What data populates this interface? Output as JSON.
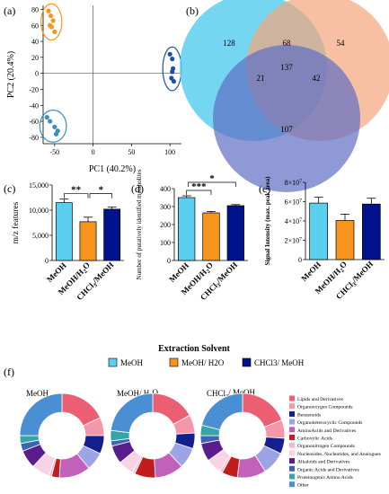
{
  "palette": {
    "meoh": "#5ccfee",
    "meoh_h2o": "#f7941d",
    "chcl3": "#00138c",
    "venn_a": "#5ccfee",
    "venn_b": "#f5a57c",
    "venn_c": "#5e6dc4"
  },
  "panel_labels": [
    "(a)",
    "(b)",
    "(c)",
    "(d)",
    "(e)",
    "(f)"
  ],
  "legend": {
    "title": "Extraction Solvent",
    "items": [
      "MeOH",
      "MeOH/ H2O",
      "CHCl3/ MeOH"
    ]
  },
  "chart_data": [
    {
      "panel": "a",
      "type": "scatter",
      "xlabel": "PC1 (40.2%)",
      "ylabel": "PC2 (20.4%)",
      "xlim": [
        -65,
        115
      ],
      "ylim": [
        -88,
        85
      ],
      "xticks": [
        -50,
        0,
        50,
        100
      ],
      "yticks": [
        80,
        60,
        40,
        20,
        0,
        -20,
        -40,
        -60,
        -80
      ],
      "series": [
        {
          "color": "#f7941d",
          "x": [
            -58,
            -55,
            -52,
            -54,
            -50,
            -56
          ],
          "y": [
            78,
            72,
            66,
            58,
            52,
            60
          ]
        },
        {
          "color": "#3a8fbc",
          "x": [
            -60,
            -56,
            -50,
            -48,
            -46
          ],
          "y": [
            -55,
            -60,
            -67,
            -76,
            -72
          ]
        },
        {
          "color": "#1e4fa8",
          "x": [
            100,
            103,
            104,
            102,
            105,
            103
          ],
          "y": [
            24,
            18,
            6,
            -6,
            -10,
            2
          ]
        }
      ]
    },
    {
      "panel": "b",
      "type": "venn",
      "regions": {
        "a_only": 128,
        "b_only": 54,
        "c_only": 107,
        "ab": 68,
        "ac": 21,
        "bc": 42,
        "abc": 137
      }
    },
    {
      "panel": "c",
      "type": "bar",
      "categories": [
        "MeOH",
        "MeOH/H2O",
        "CHCl3/MeOH"
      ],
      "values": [
        11500,
        7700,
        10200
      ],
      "errors": [
        700,
        900,
        400
      ],
      "ylabel": "m/z features",
      "ylim": [
        0,
        15000
      ],
      "yticks": [
        0,
        5000,
        10000,
        15000
      ],
      "ytick_labels": [
        "0",
        "5,000",
        "10,000",
        "15,000"
      ],
      "significance": [
        {
          "from": 0,
          "to": 1,
          "label": "**"
        },
        {
          "from": 1,
          "to": 2,
          "label": "*"
        }
      ]
    },
    {
      "panel": "d",
      "type": "bar",
      "categories": [
        "MeOH",
        "MeOH/H2O",
        "CHCl3/MeOH"
      ],
      "values": [
        350,
        265,
        305
      ],
      "errors": [
        10,
        8,
        6
      ],
      "ylabel": "Number of putatively identified metabolites",
      "ylim": [
        0,
        400
      ],
      "yticks": [
        0,
        100,
        200,
        300,
        400
      ],
      "ytick_labels": [
        "0",
        "100",
        "200",
        "300",
        "400"
      ],
      "significance": [
        {
          "from": 0,
          "to": 1,
          "label": "***"
        },
        {
          "from": 0,
          "to": 2,
          "label": "*"
        }
      ]
    },
    {
      "panel": "e",
      "type": "bar",
      "categories": [
        "MeOH",
        "MeOH/H2O",
        "CHCl3/MeOH"
      ],
      "values": [
        58500000,
        40500000,
        57500000
      ],
      "errors": [
        6000000,
        6500000,
        6000000
      ],
      "ylabel": "Signal Intensity (max. peak area)",
      "ylim": [
        0,
        80000000
      ],
      "yticks": [
        0,
        20000000,
        40000000,
        60000000,
        80000000
      ],
      "ytick_labels": [
        "0",
        "2×10^7",
        "4×10^7",
        "6×10^7",
        "8×10^7"
      ]
    },
    {
      "panel": "f",
      "type": "pie",
      "categories": [
        "Lipids and Derivatives",
        "Organooxygen Compounds",
        "Benzenoids",
        "Organoheterocyclic Compounds",
        "AminoAcids and Derivatives",
        "Carboxylic Acids",
        "Organonitrogen Compounds",
        "Nucleosides, Nucleotides, and Analogues",
        "Alkaloids and Derivatives",
        "Organic Acids and Derivatives",
        "Proteinogenic Amino Acids",
        "Other"
      ],
      "colors": [
        "#ec5f73",
        "#f597a8",
        "#131f8f",
        "#9da4e6",
        "#c261b9",
        "#c21c1c",
        "#f3b7d2",
        "#f8d2e5",
        "#5a1e8c",
        "#3f64b3",
        "#35a6a8",
        "#4a8fd4"
      ],
      "series": [
        {
          "name": "MeOH",
          "values": [
            18,
            7,
            7,
            7,
            12,
            3,
            1,
            7,
            7,
            3,
            3,
            25
          ]
        },
        {
          "name": "MeOH/ H2O",
          "values": [
            17,
            7,
            6,
            8,
            11,
            8,
            1,
            6,
            7,
            2,
            4,
            23
          ]
        },
        {
          "name": "CHCl3/ MeOH",
          "values": [
            19,
            7,
            6,
            9,
            11,
            6,
            1,
            6,
            7,
            3,
            4,
            21
          ]
        }
      ]
    }
  ]
}
